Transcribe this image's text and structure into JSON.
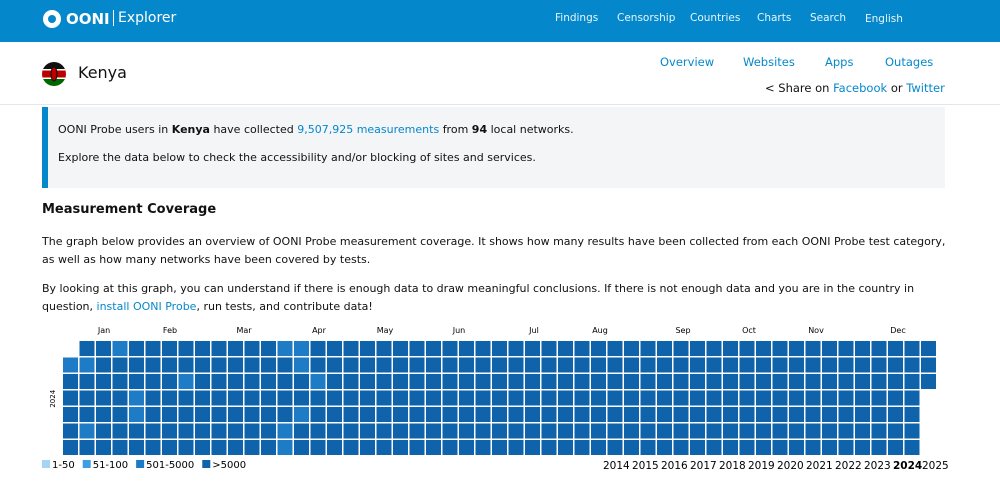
{
  "header": {
    "logo": "OONI",
    "product": "Explorer",
    "nav": [
      "Findings",
      "Censorship",
      "Countries",
      "Charts",
      "Search",
      "English"
    ]
  },
  "country": {
    "name": "Kenya",
    "tabs": [
      "Overview",
      "Websites",
      "Apps",
      "Outages"
    ],
    "share": {
      "prefix": "Share on",
      "facebook": "Facebook",
      "or": "or",
      "twitter": "Twitter"
    }
  },
  "info": {
    "line1": {
      "a": "OONI Probe users in",
      "country": "Kenya",
      "b": "have collected",
      "count": "9,507,925",
      "link": "measurements",
      "c": "from",
      "networks": 94,
      "d": "local networks."
    },
    "line2": "Explore the data below to check the accessibility and/or blocking of sites and services."
  },
  "coverage": {
    "heading": "Measurement Coverage",
    "p1": "The graph below provides an overview of OONI Probe measurement coverage. It shows how many results have been collected from each OONI Probe test category, as well as how many networks have been covered by tests.",
    "p2": "By looking at this graph, you can understand if there is enough data to draw meaningful conclusions. If there is not enough data and you are in the country in question,",
    "p2_link": "install OONI Probe",
    "p2_end": ", run tests, and contribute data!"
  },
  "heatmap": {
    "year": "2024",
    "months": [
      "Jan",
      "Feb",
      "Mar",
      "Apr",
      "May",
      "Jun",
      "Jul",
      "Aug",
      "Sep",
      "Oct",
      "Nov",
      "Dec"
    ],
    "legend": [
      {
        "label": "1-50",
        "color": "#a6d4f4"
      },
      {
        "label": "51-100",
        "color": "#3f9de2"
      },
      {
        "label": "501-5000",
        "color": "#1e7cc6"
      },
      {
        "label": ">5000",
        "color": "#0e63ab"
      }
    ],
    "weeks": [
      [
        null,
        3,
        4,
        4,
        4,
        4,
        4
      ],
      [
        4,
        3,
        4,
        4,
        4,
        3,
        4
      ],
      [
        4,
        4,
        4,
        4,
        4,
        4,
        4
      ],
      [
        3,
        4,
        4,
        4,
        4,
        4,
        4
      ],
      [
        4,
        4,
        4,
        3,
        3,
        4,
        4
      ],
      [
        4,
        4,
        4,
        4,
        4,
        4,
        4
      ],
      [
        4,
        4,
        4,
        4,
        4,
        4,
        4
      ],
      [
        4,
        4,
        3,
        4,
        4,
        4,
        4
      ],
      [
        4,
        4,
        4,
        4,
        4,
        4,
        4
      ],
      [
        4,
        4,
        4,
        4,
        4,
        4,
        4
      ],
      [
        4,
        4,
        4,
        4,
        4,
        4,
        4
      ],
      [
        4,
        4,
        4,
        4,
        4,
        4,
        4
      ],
      [
        4,
        4,
        4,
        4,
        4,
        4,
        4
      ],
      [
        3,
        4,
        4,
        4,
        4,
        3,
        3
      ],
      [
        3,
        3,
        4,
        4,
        3,
        4,
        4
      ],
      [
        4,
        4,
        3,
        4,
        4,
        4,
        4
      ],
      [
        4,
        4,
        4,
        4,
        4,
        4,
        4
      ],
      [
        4,
        4,
        4,
        4,
        4,
        4,
        4
      ],
      [
        4,
        4,
        4,
        4,
        4,
        4,
        4
      ],
      [
        4,
        4,
        4,
        4,
        4,
        4,
        4
      ],
      [
        4,
        4,
        4,
        4,
        4,
        4,
        4
      ],
      [
        4,
        4,
        4,
        4,
        4,
        4,
        4
      ],
      [
        4,
        4,
        4,
        4,
        4,
        4,
        4
      ],
      [
        4,
        4,
        4,
        4,
        4,
        4,
        4
      ],
      [
        4,
        4,
        4,
        4,
        4,
        4,
        4
      ],
      [
        4,
        4,
        4,
        4,
        4,
        4,
        4
      ],
      [
        4,
        4,
        4,
        4,
        4,
        4,
        4
      ],
      [
        4,
        4,
        4,
        4,
        4,
        4,
        4
      ],
      [
        4,
        4,
        4,
        4,
        4,
        4,
        4
      ],
      [
        4,
        4,
        4,
        4,
        4,
        4,
        4
      ],
      [
        4,
        4,
        4,
        4,
        4,
        4,
        4
      ],
      [
        4,
        4,
        4,
        4,
        4,
        4,
        4
      ],
      [
        4,
        4,
        4,
        4,
        4,
        4,
        4
      ],
      [
        4,
        4,
        4,
        4,
        4,
        4,
        4
      ],
      [
        4,
        4,
        4,
        4,
        4,
        4,
        4
      ],
      [
        4,
        4,
        4,
        4,
        4,
        4,
        4
      ],
      [
        4,
        4,
        4,
        4,
        4,
        4,
        4
      ],
      [
        4,
        4,
        4,
        4,
        4,
        4,
        4
      ],
      [
        4,
        4,
        4,
        4,
        4,
        4,
        4
      ],
      [
        4,
        4,
        4,
        4,
        4,
        4,
        4
      ],
      [
        4,
        4,
        4,
        4,
        4,
        4,
        4
      ],
      [
        4,
        4,
        4,
        4,
        4,
        4,
        4
      ],
      [
        4,
        4,
        4,
        4,
        4,
        4,
        4
      ],
      [
        4,
        4,
        4,
        4,
        4,
        4,
        4
      ],
      [
        4,
        4,
        4,
        4,
        4,
        4,
        4
      ],
      [
        4,
        4,
        4,
        4,
        4,
        4,
        4
      ],
      [
        4,
        4,
        4,
        4,
        4,
        4,
        4
      ],
      [
        4,
        4,
        4,
        4,
        4,
        4,
        4
      ],
      [
        4,
        4,
        4,
        4,
        4,
        4,
        4
      ],
      [
        4,
        4,
        4,
        4,
        4,
        4,
        4
      ],
      [
        4,
        4,
        4,
        4,
        4,
        4,
        4
      ],
      [
        4,
        4,
        4,
        4,
        4,
        4,
        4
      ],
      [
        4,
        4,
        4,
        null,
        null,
        null,
        null
      ]
    ]
  },
  "years": {
    "list": [
      "2014",
      "2015",
      "2016",
      "2017",
      "2018",
      "2019",
      "2020",
      "2021",
      "2022",
      "2023",
      "2024",
      "2025"
    ],
    "selected": "2024"
  }
}
